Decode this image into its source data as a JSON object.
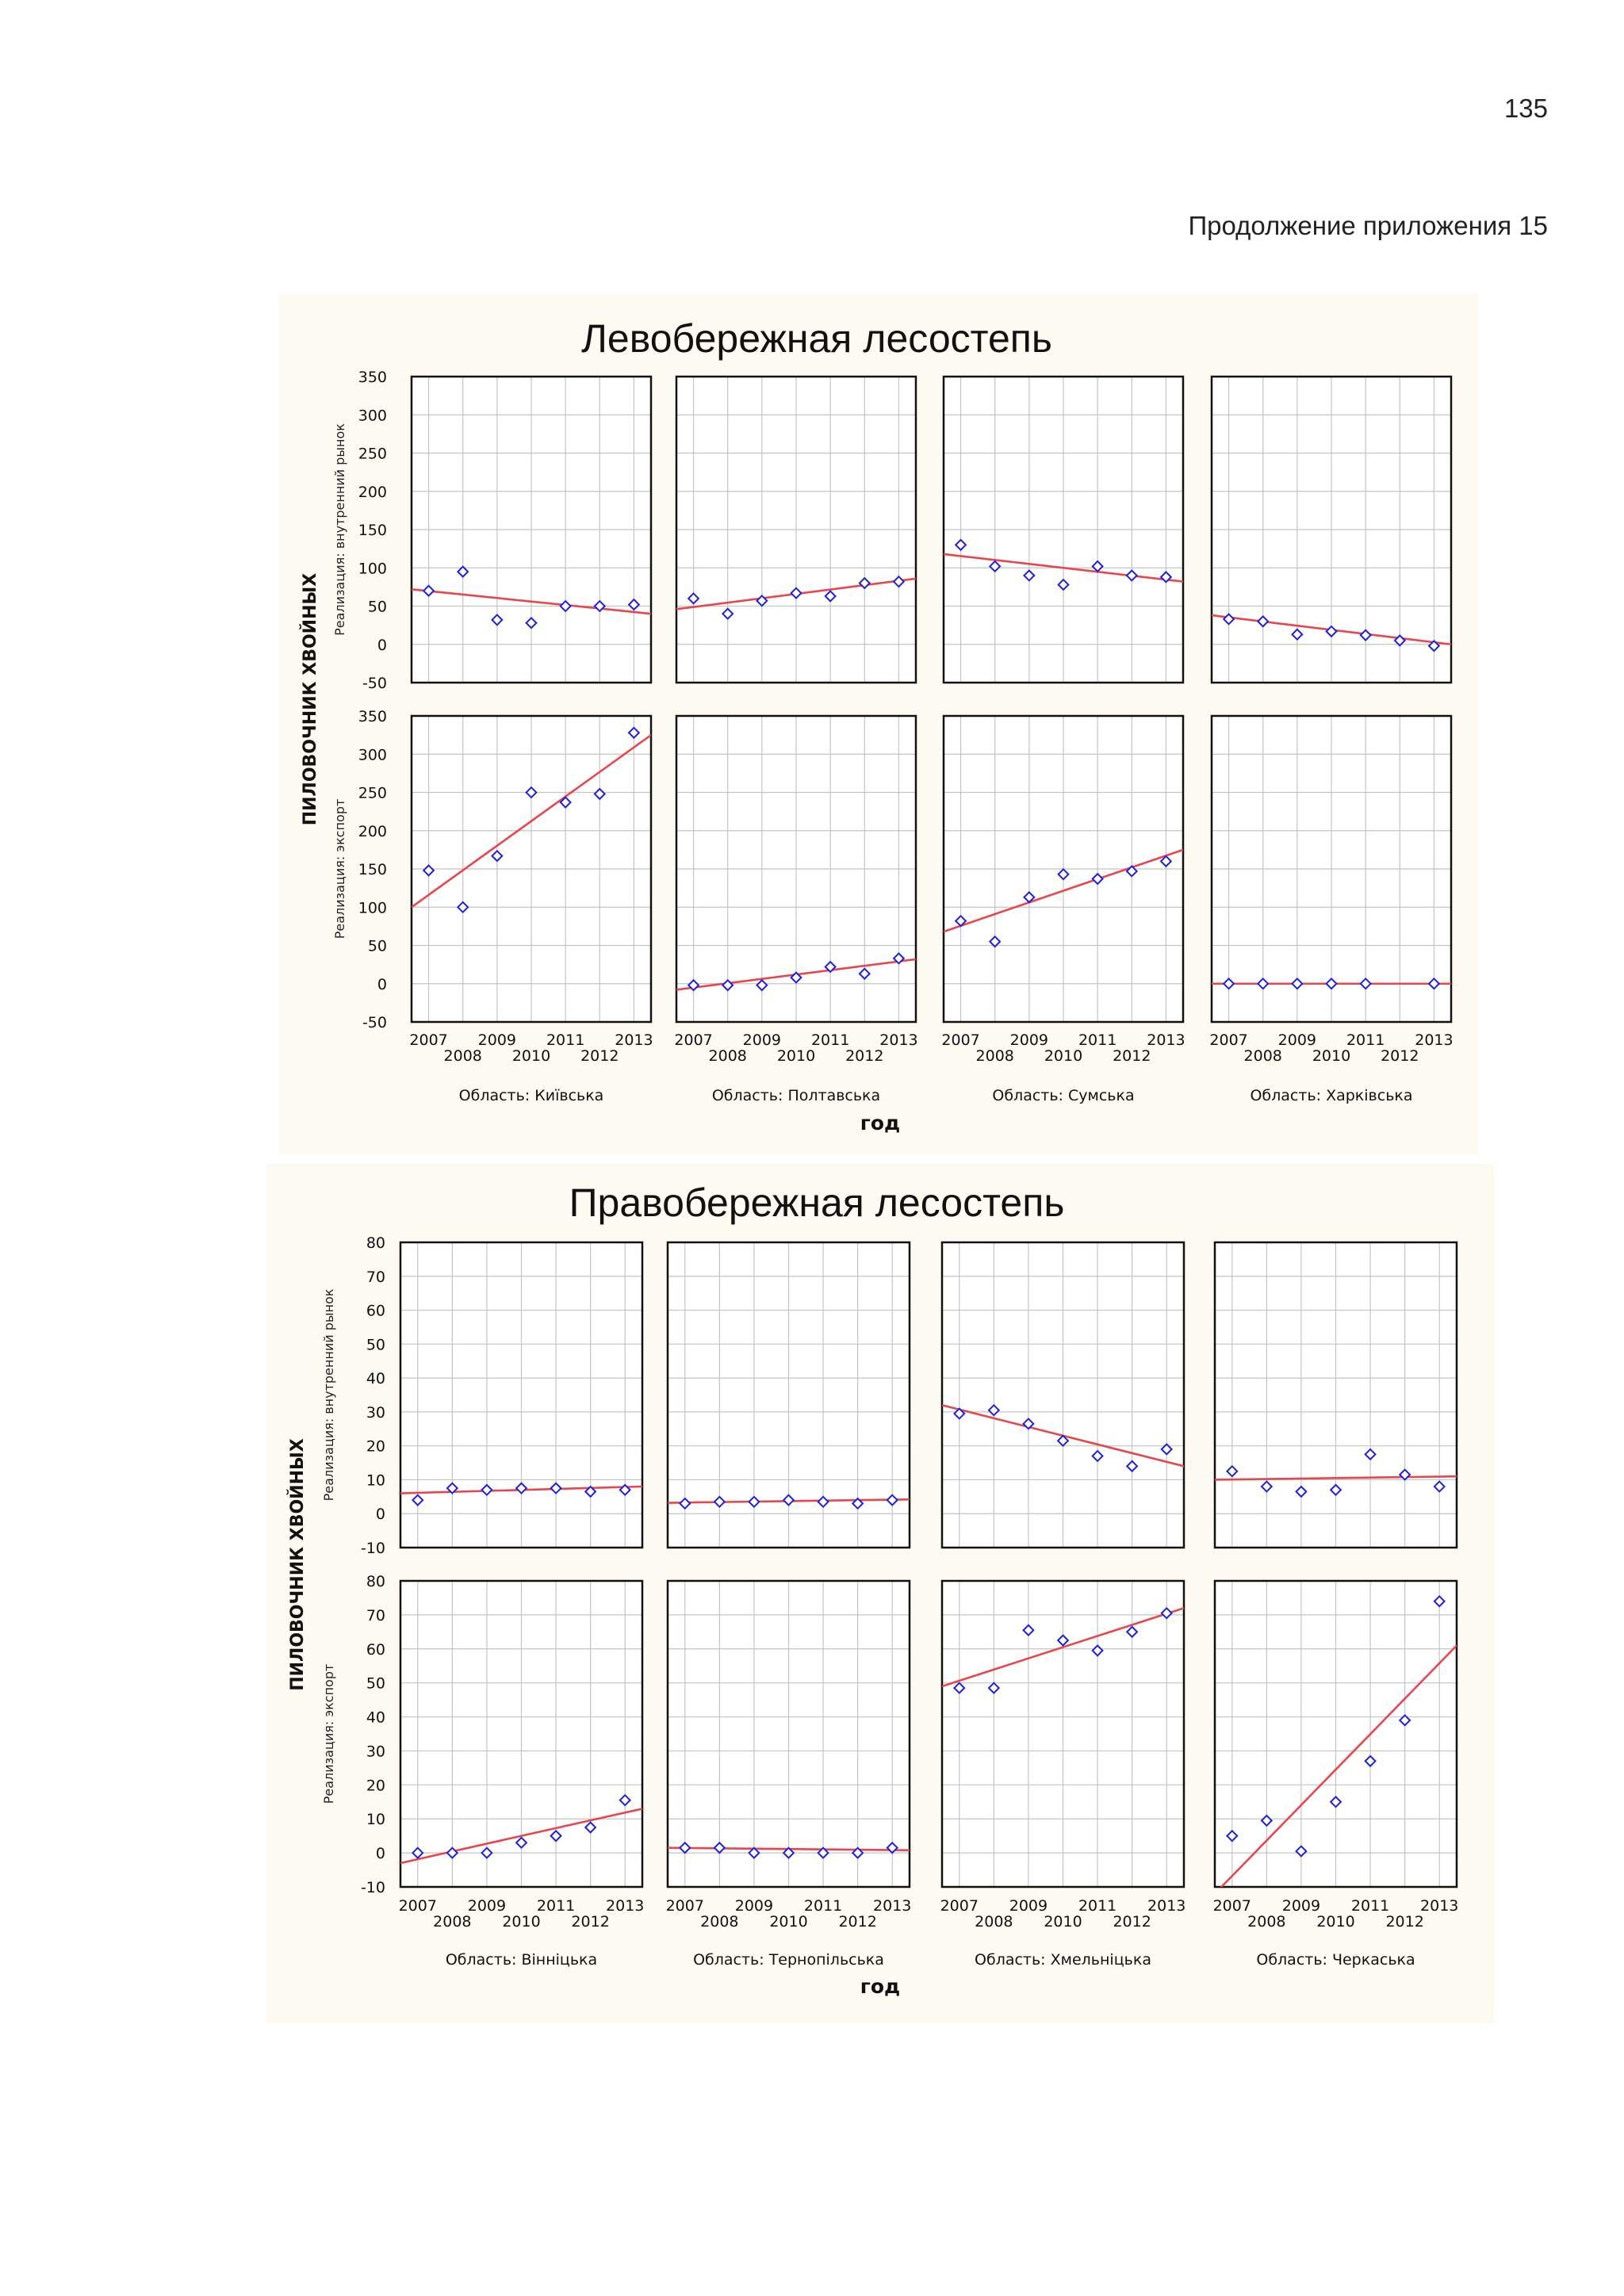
{
  "page": {
    "number": "135",
    "continuation": "Продолжение приложения 15"
  },
  "chart_data": [
    {
      "type": "scatter",
      "title": "Левобережная лесостепь",
      "outer_ylabel": "ПИЛОВОЧНИК ХВОЙНЫХ",
      "xlabel": "год",
      "row_labels": [
        "Реализация: внутренний рынок",
        "Реализация: экспорт"
      ],
      "col_labels": [
        "Область: Київська",
        "Область: Полтавська",
        "Область: Сумська",
        "Область: Харківська"
      ],
      "x_ticks_top": [
        "2007",
        "2009",
        "2011",
        "2013"
      ],
      "x_ticks_bottom": [
        "2008",
        "2010",
        "2012"
      ],
      "x": [
        2007,
        2008,
        2009,
        2010,
        2011,
        2012,
        2013
      ],
      "xlim": [
        2006.5,
        2013.5
      ],
      "ylim": [
        -50,
        350
      ],
      "y_ticks": [
        "350",
        "300",
        "250",
        "200",
        "150",
        "100",
        "50",
        "0",
        "-50"
      ],
      "panels": [
        {
          "row": 0,
          "col": 0,
          "values": [
            70,
            95,
            32,
            28,
            50,
            50,
            52
          ],
          "fit": [
            72,
            40
          ]
        },
        {
          "row": 0,
          "col": 1,
          "values": [
            60,
            40,
            57,
            67,
            63,
            80,
            82
          ],
          "fit": [
            46,
            86
          ]
        },
        {
          "row": 0,
          "col": 2,
          "values": [
            130,
            102,
            90,
            78,
            102,
            90,
            88
          ],
          "fit": [
            118,
            82
          ]
        },
        {
          "row": 0,
          "col": 3,
          "values": [
            33,
            30,
            13,
            17,
            12,
            5,
            -2
          ],
          "fit": [
            38,
            0
          ]
        },
        {
          "row": 1,
          "col": 0,
          "values": [
            148,
            100,
            167,
            250,
            237,
            248,
            328
          ],
          "fit": [
            100,
            325
          ]
        },
        {
          "row": 1,
          "col": 1,
          "values": [
            -2,
            -2,
            -2,
            8,
            22,
            13,
            33
          ],
          "fit": [
            -8,
            32
          ]
        },
        {
          "row": 1,
          "col": 2,
          "values": [
            82,
            55,
            113,
            143,
            137,
            147,
            160
          ],
          "fit": [
            68,
            175
          ]
        },
        {
          "row": 1,
          "col": 3,
          "values": [
            0,
            0,
            0,
            0,
            0,
            null,
            0
          ],
          "fit": [
            0,
            0
          ]
        }
      ]
    },
    {
      "type": "scatter",
      "title": "Правобережная лесостепь",
      "outer_ylabel": "ПИЛОВОЧНИК ХВОЙНЫХ",
      "xlabel": "год",
      "row_labels": [
        "Реализация: внутренний рынок",
        "Реализация: экспорт"
      ],
      "col_labels": [
        "Область: Вінніцька",
        "Область: Тернопільська",
        "Область: Хмельніцька",
        "Область: Черкаська"
      ],
      "x_ticks_top": [
        "2007",
        "2009",
        "2011",
        "2013"
      ],
      "x_ticks_bottom": [
        "2008",
        "2010",
        "2012"
      ],
      "x": [
        2007,
        2008,
        2009,
        2010,
        2011,
        2012,
        2013
      ],
      "xlim": [
        2006.5,
        2013.5
      ],
      "ylim": [
        -10,
        80
      ],
      "y_ticks": [
        "80",
        "70",
        "60",
        "50",
        "40",
        "30",
        "20",
        "10",
        "0",
        "-10"
      ],
      "panels": [
        {
          "row": 0,
          "col": 0,
          "values": [
            4,
            7.5,
            7,
            7.5,
            7.5,
            6.5,
            7
          ],
          "fit": [
            6,
            8
          ]
        },
        {
          "row": 0,
          "col": 1,
          "values": [
            3,
            3.5,
            3.5,
            4,
            3.5,
            3,
            4
          ],
          "fit": [
            3.2,
            4.2
          ]
        },
        {
          "row": 0,
          "col": 2,
          "values": [
            29.5,
            30.5,
            26.5,
            21.5,
            17,
            14,
            19
          ],
          "fit": [
            32,
            14
          ]
        },
        {
          "row": 0,
          "col": 3,
          "values": [
            12.5,
            8,
            6.5,
            7,
            17.5,
            11.5,
            8
          ],
          "fit": [
            10,
            11
          ]
        },
        {
          "row": 1,
          "col": 0,
          "values": [
            0,
            0,
            0,
            3,
            5,
            7.5,
            15.5
          ],
          "fit": [
            -3,
            13
          ]
        },
        {
          "row": 1,
          "col": 1,
          "values": [
            1.5,
            1.5,
            0,
            0,
            0,
            0,
            1.5
          ],
          "fit": [
            1.5,
            0.8
          ]
        },
        {
          "row": 1,
          "col": 2,
          "values": [
            48.5,
            48.5,
            65.5,
            62.5,
            59.5,
            65,
            70.5
          ],
          "fit": [
            49,
            72
          ]
        },
        {
          "row": 1,
          "col": 3,
          "values": [
            5,
            9.5,
            0.5,
            15,
            27,
            39,
            74
          ],
          "fit": [
            -12,
            61
          ]
        }
      ]
    }
  ]
}
